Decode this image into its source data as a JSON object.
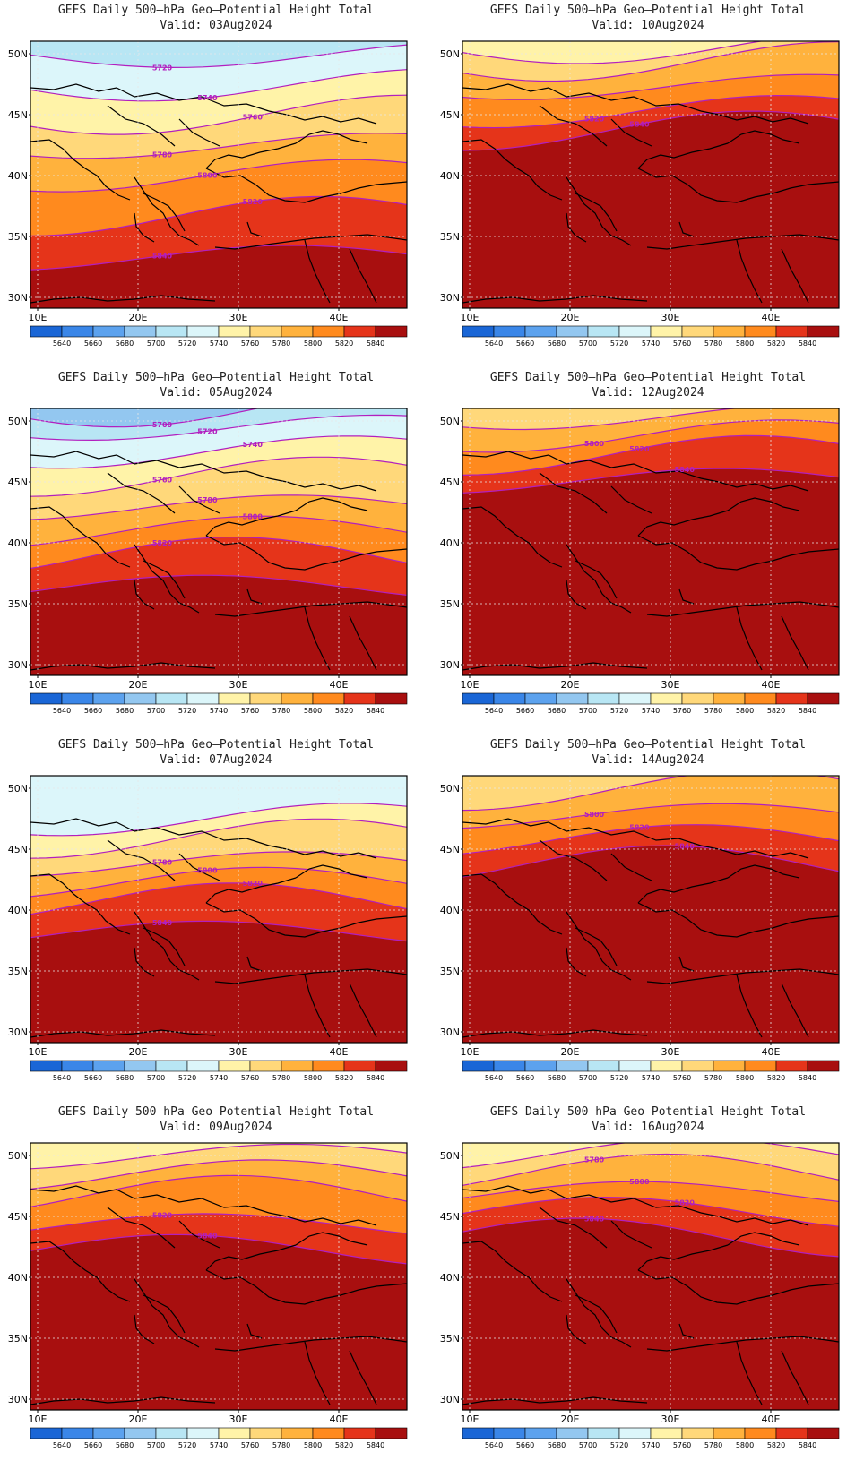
{
  "panels": [
    {
      "title": "GEFS Daily 500–hPa Geo–Potential Height Total",
      "valid": "Valid: 03Aug2024",
      "contours": [
        [
          5720,
          0.08
        ],
        [
          5740,
          0.2
        ],
        [
          5760,
          0.32
        ],
        [
          5780,
          0.42
        ],
        [
          5800,
          0.54
        ],
        [
          5820,
          0.7
        ],
        [
          5840,
          0.84
        ]
      ],
      "contour_labels": [
        "5720",
        "5740",
        "5760",
        "5780",
        "5800",
        "5820",
        "5840"
      ]
    },
    {
      "title": "GEFS Daily 500–hPa Geo–Potential Height Total",
      "valid": "Valid: 10Aug2024",
      "contours": [
        [
          5760,
          0.06
        ],
        [
          5780,
          0.12
        ],
        [
          5800,
          0.2
        ],
        [
          5820,
          0.3
        ],
        [
          5840,
          0.38
        ]
      ],
      "contour_labels": [
        "5820",
        "5840"
      ]
    },
    {
      "title": "GEFS Daily 500–hPa Geo–Potential Height Total",
      "valid": "Valid: 05Aug2024",
      "contours": [
        [
          5700,
          0.04
        ],
        [
          5720,
          0.1
        ],
        [
          5740,
          0.2
        ],
        [
          5760,
          0.3
        ],
        [
          5780,
          0.4
        ],
        [
          5800,
          0.5
        ],
        [
          5820,
          0.6
        ],
        [
          5840,
          0.7
        ]
      ],
      "contour_labels": [
        "5700",
        "5720",
        "5740",
        "5760",
        "5780",
        "5800",
        "5820"
      ]
    },
    {
      "title": "GEFS Daily 500–hPa Geo–Potential Height Total",
      "valid": "Valid: 12Aug2024",
      "contours": [
        [
          5780,
          0.06
        ],
        [
          5800,
          0.14
        ],
        [
          5820,
          0.22
        ],
        [
          5840,
          0.3
        ]
      ],
      "contour_labels": [
        "5800",
        "5820",
        "5840"
      ]
    },
    {
      "title": "GEFS Daily 500–hPa Geo–Potential Height Total",
      "valid": "Valid: 07Aug2024",
      "contours": [
        [
          5740,
          0.2
        ],
        [
          5760,
          0.28
        ],
        [
          5780,
          0.36
        ],
        [
          5800,
          0.44
        ],
        [
          5820,
          0.52
        ],
        [
          5840,
          0.62
        ]
      ],
      "contour_labels": [
        "5780",
        "5800",
        "5820",
        "5840"
      ]
    },
    {
      "title": "GEFS Daily 500–hPa Geo–Potential Height Total",
      "valid": "Valid: 14Aug2024",
      "contours": [
        [
          5780,
          0.1
        ],
        [
          5800,
          0.18
        ],
        [
          5820,
          0.28
        ],
        [
          5840,
          0.38
        ]
      ],
      "contour_labels": [
        "5800",
        "5820",
        "5840"
      ]
    },
    {
      "title": "GEFS Daily 500–hPa Geo–Potential Height Total",
      "valid": "Valid: 09Aug2024",
      "contours": [
        [
          5760,
          0.08
        ],
        [
          5780,
          0.16
        ],
        [
          5800,
          0.24
        ],
        [
          5820,
          0.34
        ],
        [
          5840,
          0.44
        ]
      ],
      "contour_labels": [
        "5820",
        "5840"
      ]
    },
    {
      "title": "GEFS Daily 500–hPa Geo–Potential Height Total",
      "valid": "Valid: 16Aug2024",
      "contours": [
        [
          5760,
          0.08
        ],
        [
          5780,
          0.16
        ],
        [
          5800,
          0.22
        ],
        [
          5820,
          0.3
        ],
        [
          5840,
          0.4
        ]
      ],
      "contour_labels": [
        "5780",
        "5800",
        "5820",
        "5840"
      ]
    }
  ],
  "lat_labels": [
    "50N",
    "45N",
    "40N",
    "35N",
    "30N"
  ],
  "lon_labels": [
    "10E",
    "20E",
    "30E",
    "40E"
  ],
  "colorbar": {
    "labels": [
      "5640",
      "5660",
      "5680",
      "5700",
      "5720",
      "5740",
      "5760",
      "5780",
      "5800",
      "5820",
      "5840"
    ],
    "colors": [
      "#1a66d6",
      "#3a86e8",
      "#5ca2ee",
      "#93c7f0",
      "#b8e6f4",
      "#dcf6fa",
      "#fff3a8",
      "#ffd87a",
      "#ffb23d",
      "#ff8a1e",
      "#e5341a",
      "#a80f0f"
    ]
  },
  "contour_color": "#b21fbf",
  "coast_color": "#000000"
}
